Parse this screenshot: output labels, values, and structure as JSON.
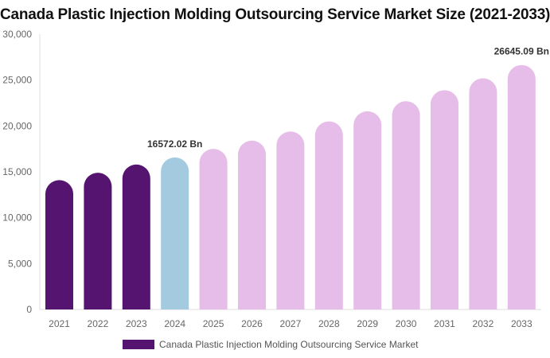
{
  "chart_data": {
    "type": "bar",
    "title": "Canada Plastic Injection Molding Outsourcing Service Market Size (2021-2033)",
    "categories": [
      "2021",
      "2022",
      "2023",
      "2024",
      "2025",
      "2026",
      "2027",
      "2028",
      "2029",
      "2030",
      "2031",
      "2032",
      "2033"
    ],
    "series": [
      {
        "name": "Canada Plastic Injection Molding Outsourcing Service Market",
        "values": [
          14100,
          14900,
          15800,
          16572.02,
          17500,
          18400,
          19400,
          20500,
          21600,
          22700,
          23900,
          25200,
          26645.09
        ]
      }
    ],
    "data_labels": [
      {
        "index": 3,
        "text": "16572.02 Bn"
      },
      {
        "index": 12,
        "text": "26645.09 Bn"
      }
    ],
    "ylim": [
      0,
      30000
    ],
    "yticks": [
      "0",
      "5,000",
      "10,000",
      "15,000",
      "20,000",
      "25,000",
      "30,000"
    ],
    "xlabel": "",
    "ylabel": "",
    "grid": false,
    "legend": "bottom",
    "colors": {
      "historical": "#541470",
      "base_year": "#a3cadf",
      "forecast": "#e6bde8"
    }
  }
}
